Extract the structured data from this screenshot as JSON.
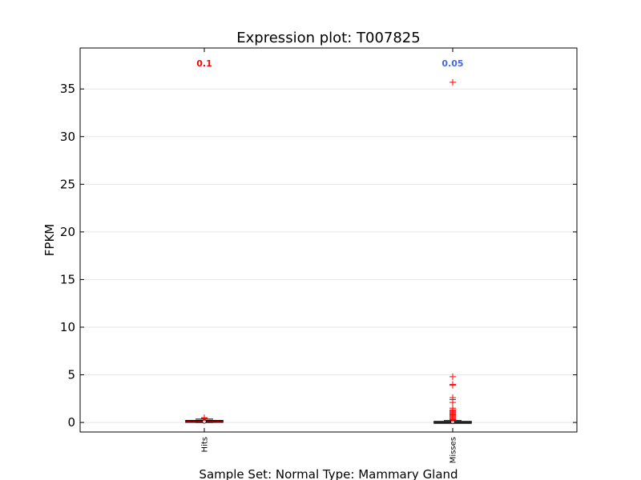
{
  "chart_data": {
    "type": "box",
    "title": "Expression plot: T007825",
    "xlabel": "Sample Set: Normal Type: Mammary Gland",
    "ylabel": "FPKM",
    "ylim": [
      -1,
      39.3
    ],
    "yticks": [
      0,
      5,
      10,
      15,
      20,
      25,
      30,
      35
    ],
    "grid": true,
    "categories": [
      "Hits",
      "Misses"
    ],
    "boxes": [
      {
        "name": "Hits",
        "q1": 0.05,
        "median": 0.1,
        "q3": 0.2,
        "whisker_low": 0.0,
        "whisker_high": 0.35,
        "outliers": [
          0.45,
          0.5
        ],
        "annotation": "0.1",
        "annotation_color": "#ff0000"
      },
      {
        "name": "Misses",
        "q1": 0.0,
        "median": 0.05,
        "q3": 0.1,
        "whisker_low": 0.0,
        "whisker_high": 0.2,
        "outliers": [
          0.3,
          0.4,
          0.5,
          0.6,
          0.7,
          0.8,
          0.9,
          1.0,
          1.1,
          1.2,
          1.3,
          1.5,
          2.1,
          2.4,
          2.6,
          3.9,
          4.0,
          4.8,
          35.7
        ],
        "annotation": "0.05",
        "annotation_color": "#4169e1"
      }
    ]
  }
}
